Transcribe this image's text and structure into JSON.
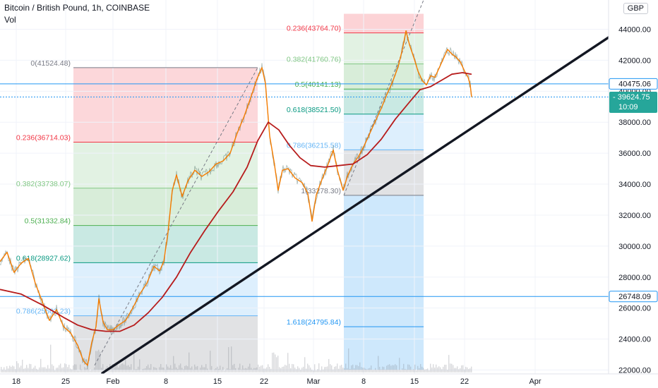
{
  "header": {
    "title": "Bitcoin / British Pound, 1h, COINBASE",
    "sub": "Vol",
    "currency": "GBP"
  },
  "chart_data": {
    "type": "line",
    "x_ticks": [
      "18",
      "25",
      "Feb",
      "8",
      "15",
      "22",
      "Mar",
      "8",
      "15",
      "22",
      "Apr"
    ],
    "y_ticks": [
      "44000.00",
      "42000.00",
      "40000.00",
      "38000.00",
      "36000.00",
      "34000.00",
      "32000.00",
      "30000.00",
      "28000.00",
      "26000.00",
      "24000.00",
      "22000.00"
    ],
    "ylim": [
      21800,
      44800
    ],
    "price_labels": [
      {
        "value": 40475.06,
        "text": "40475.06",
        "style": "outline",
        "color": "#2196f3"
      },
      {
        "value": 39624.75,
        "text": "39624.75",
        "sub": "10:09",
        "style": "filled",
        "color": "#26a69a"
      },
      {
        "value": 26748.09,
        "text": "26748.09",
        "style": "outline",
        "color": "#2196f3"
      }
    ],
    "horizontal_lines": [
      {
        "value": 40475.06,
        "color": "#2196f3",
        "dashed": false
      },
      {
        "value": 39624.75,
        "color": "#2196f3",
        "dashed": true
      },
      {
        "value": 26748.09,
        "color": "#2196f3",
        "dashed": false
      }
    ],
    "fib_retracements": [
      {
        "from_x": 104,
        "to_x": 365,
        "levels": [
          {
            "ratio": "0",
            "label": "0(41524.48)",
            "price": 41524.48,
            "color": "#787b86"
          },
          {
            "ratio": "0.236",
            "label": "0.236(36714.03)",
            "price": 36714.03,
            "color": "#f23645"
          },
          {
            "ratio": "0.382",
            "label": "0.382(33738.07)",
            "price": 33738.07,
            "color": "#81c784"
          },
          {
            "ratio": "0.5",
            "label": "0.5(31332.84)",
            "price": 31332.84,
            "color": "#4caf50"
          },
          {
            "ratio": "0.618",
            "label": "0.618(28927.62)",
            "price": 28927.62,
            "color": "#089981"
          },
          {
            "ratio": "0.786",
            "label": "0.786(25503.23)",
            "price": 25503.23,
            "color": "#64b5f6"
          }
        ]
      },
      {
        "from_x": 487,
        "to_x": 600,
        "levels": [
          {
            "ratio": "0.236",
            "label": "0.236(43764.70)",
            "price": 43764.7,
            "color": "#f23645"
          },
          {
            "ratio": "0.382",
            "label": "0.382(41760.76)",
            "price": 41760.76,
            "color": "#81c784"
          },
          {
            "ratio": "0.5",
            "label": "0.5(40141.13)",
            "price": 40141.13,
            "color": "#4caf50"
          },
          {
            "ratio": "0.618",
            "label": "0.618(38521.50)",
            "price": 38521.5,
            "color": "#089981"
          },
          {
            "ratio": "0.786",
            "label": "0.786(36215.58)",
            "price": 36215.58,
            "color": "#64b5f6"
          },
          {
            "ratio": "1",
            "label": "1(33278.30)",
            "price": 33278.3,
            "color": "#787b86"
          },
          {
            "ratio": "1.618",
            "label": "1.618(24795.84)",
            "price": 24795.84,
            "color": "#2196f3"
          }
        ]
      }
    ],
    "series": [
      {
        "kind": "price",
        "color": "#f57c00",
        "values": [
          [
            0,
            29000
          ],
          [
            10,
            29600
          ],
          [
            20,
            28300
          ],
          [
            30,
            28900
          ],
          [
            40,
            29200
          ],
          [
            50,
            27600
          ],
          [
            60,
            26400
          ],
          [
            70,
            25200
          ],
          [
            80,
            25900
          ],
          [
            90,
            24800
          ],
          [
            100,
            24400
          ],
          [
            110,
            23600
          ],
          [
            118,
            22600
          ],
          [
            124,
            22300
          ],
          [
            130,
            23800
          ],
          [
            136,
            24800
          ],
          [
            140,
            26600
          ],
          [
            146,
            25100
          ],
          [
            152,
            24600
          ],
          [
            160,
            24600
          ],
          [
            168,
            24900
          ],
          [
            178,
            25200
          ],
          [
            188,
            26000
          ],
          [
            198,
            26900
          ],
          [
            208,
            27600
          ],
          [
            218,
            28700
          ],
          [
            226,
            28400
          ],
          [
            232,
            29000
          ],
          [
            238,
            30900
          ],
          [
            244,
            33600
          ],
          [
            250,
            34600
          ],
          [
            258,
            33200
          ],
          [
            266,
            34200
          ],
          [
            276,
            34900
          ],
          [
            286,
            34500
          ],
          [
            296,
            34800
          ],
          [
            306,
            35300
          ],
          [
            316,
            35500
          ],
          [
            326,
            36000
          ],
          [
            336,
            37300
          ],
          [
            346,
            38400
          ],
          [
            356,
            39700
          ],
          [
            364,
            40800
          ],
          [
            371,
            41524
          ],
          [
            376,
            40500
          ],
          [
            382,
            37100
          ],
          [
            388,
            35500
          ],
          [
            394,
            33600
          ],
          [
            400,
            34900
          ],
          [
            408,
            35000
          ],
          [
            418,
            34400
          ],
          [
            428,
            34100
          ],
          [
            436,
            33400
          ],
          [
            442,
            31600
          ],
          [
            448,
            33300
          ],
          [
            456,
            34300
          ],
          [
            464,
            35200
          ],
          [
            472,
            36200
          ],
          [
            478,
            34900
          ],
          [
            486,
            33600
          ],
          [
            492,
            34500
          ],
          [
            500,
            35300
          ],
          [
            508,
            35800
          ],
          [
            516,
            36500
          ],
          [
            524,
            37300
          ],
          [
            532,
            38100
          ],
          [
            540,
            38900
          ],
          [
            548,
            39800
          ],
          [
            556,
            40600
          ],
          [
            564,
            41600
          ],
          [
            570,
            42700
          ],
          [
            575,
            43900
          ],
          [
            580,
            43000
          ],
          [
            586,
            42200
          ],
          [
            592,
            41300
          ],
          [
            598,
            40700
          ],
          [
            604,
            40400
          ],
          [
            610,
            41000
          ],
          [
            616,
            40900
          ],
          [
            622,
            41500
          ],
          [
            628,
            42100
          ],
          [
            634,
            42700
          ],
          [
            640,
            42400
          ],
          [
            646,
            42200
          ],
          [
            652,
            41900
          ],
          [
            658,
            41300
          ],
          [
            663,
            40900
          ],
          [
            666,
            40400
          ],
          [
            668,
            39625
          ]
        ]
      },
      {
        "kind": "ma",
        "color": "#b71c1c",
        "values": [
          [
            0,
            27200
          ],
          [
            30,
            26900
          ],
          [
            60,
            26200
          ],
          [
            90,
            25400
          ],
          [
            110,
            24900
          ],
          [
            130,
            24600
          ],
          [
            150,
            24500
          ],
          [
            170,
            24500
          ],
          [
            190,
            24900
          ],
          [
            210,
            25700
          ],
          [
            230,
            26700
          ],
          [
            250,
            28000
          ],
          [
            270,
            29600
          ],
          [
            290,
            31000
          ],
          [
            310,
            32300
          ],
          [
            330,
            33500
          ],
          [
            350,
            35100
          ],
          [
            365,
            36800
          ],
          [
            380,
            38000
          ],
          [
            395,
            37500
          ],
          [
            410,
            36500
          ],
          [
            425,
            35700
          ],
          [
            440,
            35200
          ],
          [
            460,
            35100
          ],
          [
            480,
            35200
          ],
          [
            500,
            35300
          ],
          [
            520,
            35900
          ],
          [
            540,
            36900
          ],
          [
            560,
            38200
          ],
          [
            580,
            39300
          ],
          [
            595,
            40100
          ],
          [
            610,
            40300
          ],
          [
            625,
            40700
          ],
          [
            640,
            41100
          ],
          [
            655,
            41200
          ],
          [
            668,
            41100
          ]
        ]
      }
    ],
    "trendline": {
      "from": [
        145,
        21800
      ],
      "to": [
        866,
        43600
      ]
    }
  }
}
